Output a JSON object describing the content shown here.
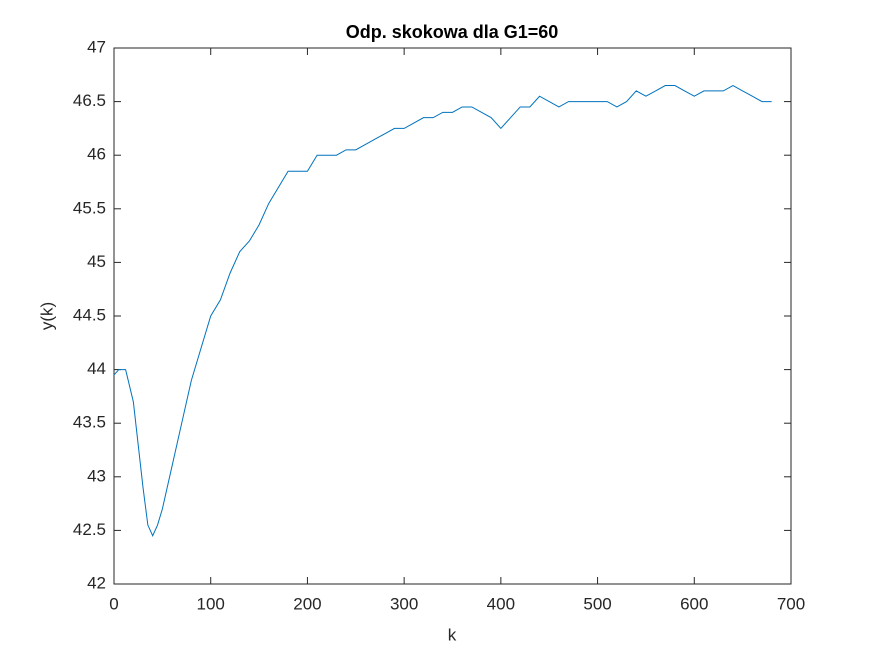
{
  "chart_data": {
    "type": "line",
    "title": "Odp. skokowa dla G1=60",
    "xlabel": "k",
    "ylabel": "y(k)",
    "x": [
      0,
      5,
      12,
      20,
      30,
      35,
      40,
      45,
      50,
      55,
      60,
      70,
      80,
      90,
      100,
      110,
      120,
      130,
      140,
      150,
      160,
      170,
      180,
      190,
      200,
      210,
      220,
      230,
      240,
      250,
      260,
      270,
      280,
      290,
      300,
      310,
      320,
      330,
      340,
      350,
      360,
      370,
      380,
      390,
      400,
      410,
      420,
      430,
      440,
      450,
      460,
      470,
      480,
      490,
      500,
      510,
      520,
      530,
      540,
      550,
      560,
      570,
      580,
      590,
      600,
      610,
      620,
      630,
      640,
      650,
      660,
      670,
      680
    ],
    "series": [
      {
        "name": "y(k)",
        "color": "#0072bd",
        "values": [
          43.95,
          44.0,
          44.0,
          43.7,
          42.9,
          42.55,
          42.45,
          42.55,
          42.7,
          42.9,
          43.1,
          43.5,
          43.9,
          44.2,
          44.5,
          44.65,
          44.9,
          45.1,
          45.2,
          45.35,
          45.55,
          45.7,
          45.85,
          45.85,
          45.85,
          46.0,
          46.0,
          46.0,
          46.05,
          46.05,
          46.1,
          46.15,
          46.2,
          46.25,
          46.25,
          46.3,
          46.35,
          46.35,
          46.4,
          46.4,
          46.45,
          46.45,
          46.4,
          46.35,
          46.25,
          46.35,
          46.45,
          46.45,
          46.55,
          46.5,
          46.45,
          46.5,
          46.5,
          46.5,
          46.5,
          46.5,
          46.45,
          46.5,
          46.6,
          46.55,
          46.6,
          46.65,
          46.65,
          46.6,
          46.55,
          46.6,
          46.6,
          46.6,
          46.65,
          46.6,
          46.55,
          46.5,
          46.5
        ]
      }
    ],
    "xlim": [
      0,
      700
    ],
    "xticks": [
      0,
      100,
      200,
      300,
      400,
      500,
      600,
      700
    ],
    "ylim": [
      42,
      47
    ],
    "yticks": [
      42,
      42.5,
      43,
      43.5,
      44,
      44.5,
      45,
      45.5,
      46,
      46.5,
      47
    ],
    "grid": false
  }
}
